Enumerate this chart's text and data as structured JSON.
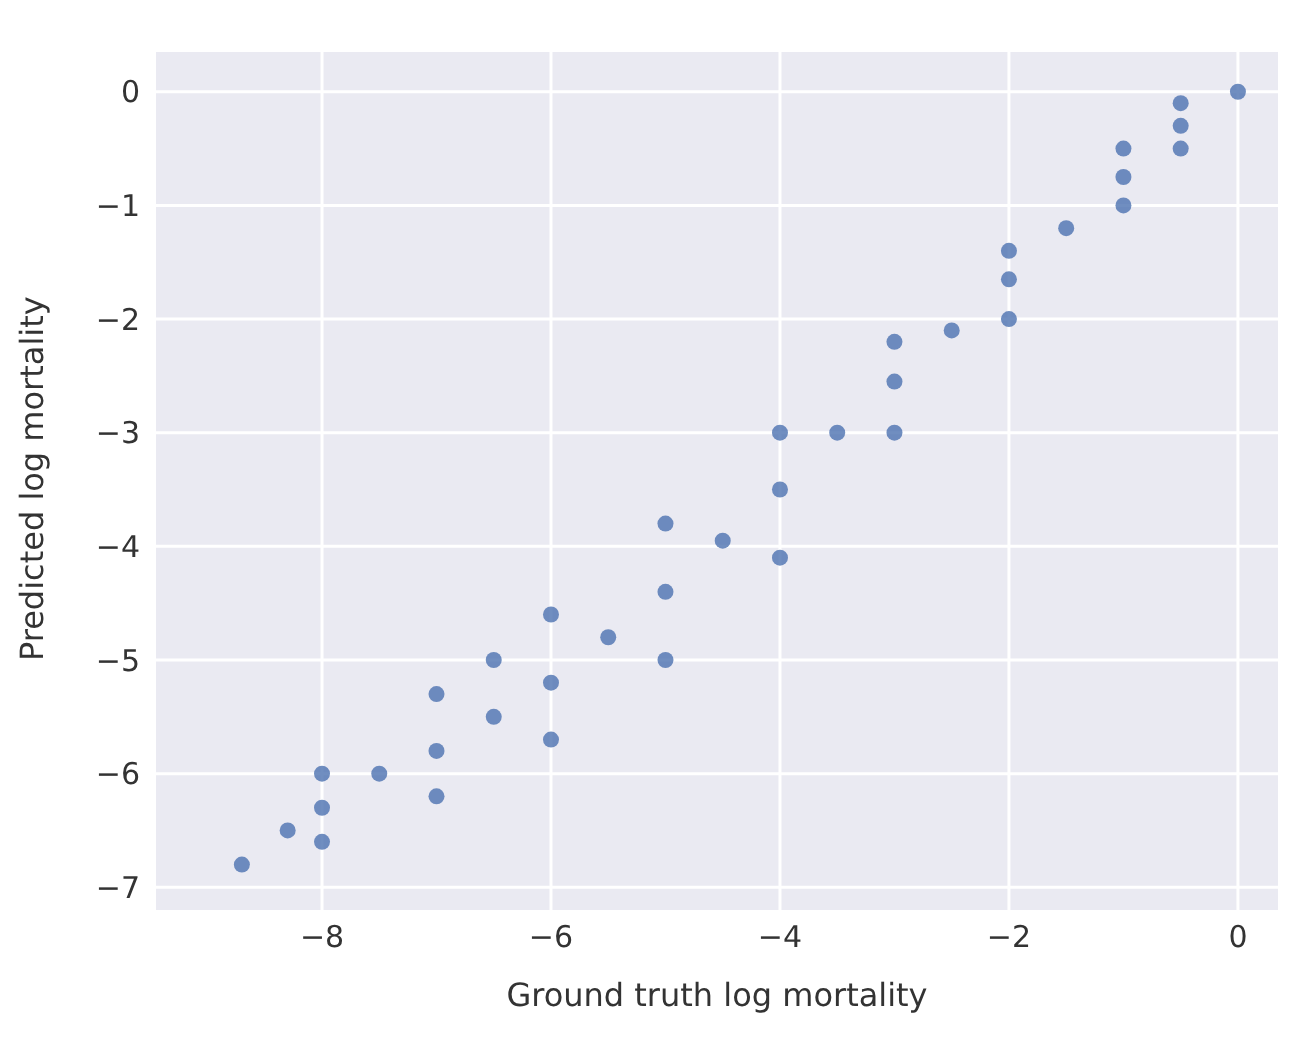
{
  "chart_data": {
    "type": "scatter",
    "xlabel": "Ground truth log mortality",
    "ylabel": "Predicted log mortality",
    "x": [
      -8.7,
      -8.3,
      -8,
      -7.5,
      -7,
      -6.5,
      -6,
      -5.5,
      -5,
      -4.5,
      -4,
      -3.5,
      -3,
      -2.5,
      -2,
      -1.5,
      -1,
      -0.5,
      0,
      -8,
      -7,
      -6.5,
      -6,
      -5,
      -4,
      -3,
      -2,
      -1,
      -0.5,
      -8,
      -7,
      -6,
      -5,
      -4,
      -3,
      -2,
      -1,
      -0.5
    ],
    "series": [
      {
        "color": "#4c72b0",
        "values": [
          -6.8,
          -6.5,
          -6.3,
          -6.0,
          -5.8,
          -5.5,
          -5.2,
          -4.8,
          -4.4,
          -3.95,
          -3.5,
          -3.0,
          -2.55,
          -2.1,
          -1.65,
          -1.2,
          -0.75,
          -0.3,
          0,
          -6.0,
          -5.3,
          -5.0,
          -4.6,
          -3.8,
          -3.0,
          -2.2,
          -1.4,
          -0.5,
          -0.1,
          -6.6,
          -6.2,
          -5.7,
          -5.0,
          -4.1,
          -3.0,
          -2.0,
          -1.0,
          -0.5
        ]
      }
    ],
    "xlim": [
      -9.45,
      0.35
    ],
    "xticks": [
      -8,
      -6,
      -4,
      -2,
      0
    ],
    "ylim": [
      -7.2,
      0.35
    ],
    "yticks": [
      -7,
      -6,
      -5,
      -4,
      -3,
      -2,
      -1,
      0
    ],
    "grid": true,
    "marker": "circle"
  }
}
